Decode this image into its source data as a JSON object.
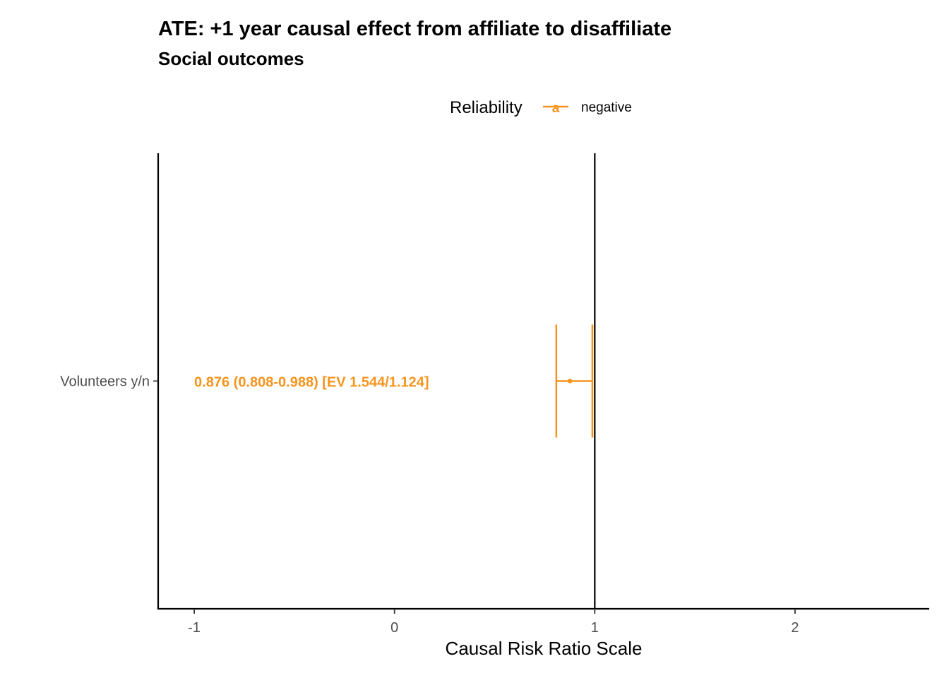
{
  "chart_data": {
    "type": "forest",
    "title": "ATE: +1 year causal effect from affiliate to disaffiliate",
    "subtitle": "Social outcomes",
    "xlabel": "Causal Risk Ratio Scale",
    "ylabel": "",
    "xlim": [
      -1.18,
      2.67
    ],
    "x_ticks": [
      -1,
      0,
      1,
      2
    ],
    "x_tick_labels": [
      "-1",
      "0",
      "1",
      "2"
    ],
    "reference_line": 1,
    "grid": false,
    "legend": {
      "title": "Reliability",
      "position": "top",
      "entries": [
        {
          "label": "negative",
          "symbol": "a",
          "color": "#F7941D"
        }
      ]
    },
    "categories": [
      "Volunteers y/n"
    ],
    "series": [
      {
        "name": "negative",
        "color": "#F7941D",
        "points": [
          {
            "category": "Volunteers y/n",
            "estimate": 0.876,
            "lower": 0.808,
            "upper": 0.988,
            "label": "0.876 (0.808-0.988) [EV 1.544/1.124]",
            "label_x": -1
          }
        ]
      }
    ]
  }
}
